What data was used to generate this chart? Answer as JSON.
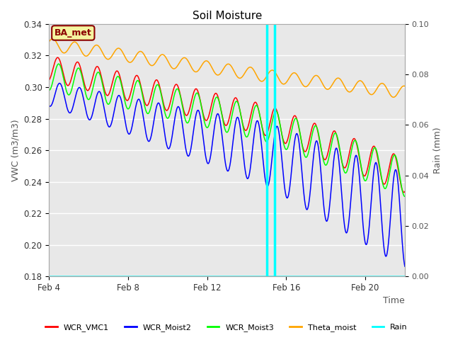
{
  "title": "Soil Moisture",
  "xlabel": "Time",
  "ylabel_left": "VWC (m3/m3)",
  "ylabel_right": "Rain (mm)",
  "ylim_left": [
    0.18,
    0.34
  ],
  "ylim_right": [
    0.0,
    0.1
  ],
  "yticks_left": [
    0.18,
    0.2,
    0.22,
    0.24,
    0.26,
    0.28,
    0.3,
    0.32,
    0.34
  ],
  "yticks_right": [
    0.0,
    0.02,
    0.04,
    0.06,
    0.08,
    0.1
  ],
  "xtick_positions": [
    0,
    4,
    8,
    12,
    16
  ],
  "xtick_labels": [
    "Feb 4",
    "Feb 8",
    "Feb 12",
    "Feb 16",
    "Feb 20"
  ],
  "xlim": [
    0,
    18
  ],
  "bg_color": "#e8e8e8",
  "vline_x": [
    11.0,
    11.4
  ],
  "vline_color": "cyan",
  "annotation_label": "BA_met",
  "annotation_color": "#8B0000",
  "annotation_bg": "#f5f5a0",
  "legend_entries": [
    "WCR_VMC1",
    "WCR_Moist2",
    "WCR_Moist3",
    "Theta_moist",
    "Rain"
  ],
  "legend_colors": [
    "red",
    "blue",
    "lime",
    "orange",
    "cyan"
  ]
}
